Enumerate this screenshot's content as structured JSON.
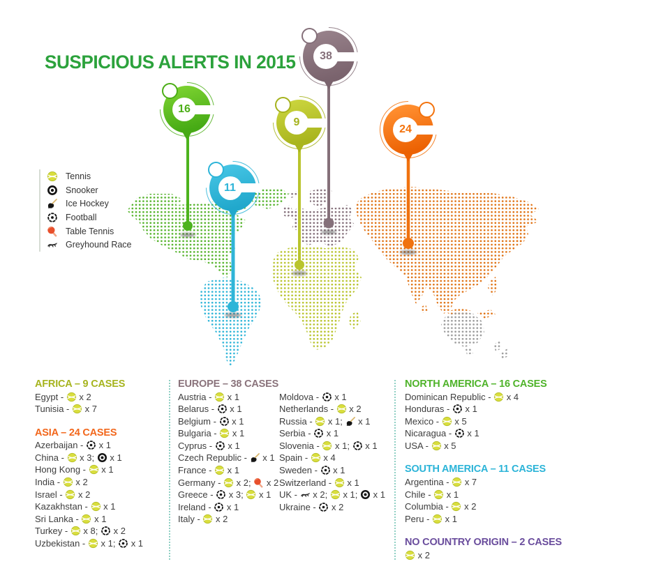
{
  "title": "SUSPICIOUS ALERTS IN 2015",
  "legend": {
    "items": [
      {
        "sport": "tennis",
        "label": "Tennis"
      },
      {
        "sport": "snooker",
        "label": "Snooker"
      },
      {
        "sport": "icehockey",
        "label": "Ice Hockey"
      },
      {
        "sport": "football",
        "label": "Football"
      },
      {
        "sport": "tabletennis",
        "label": "Table Tennis"
      },
      {
        "sport": "greyhound",
        "label": "Greyhound Race"
      }
    ]
  },
  "markers": {
    "north_america": "16",
    "europe": "38",
    "africa": "9",
    "asia": "24",
    "south_america": "11"
  },
  "colors": {
    "title_green": "#2ca23c",
    "map_north_america": "#55b32b",
    "map_south_america": "#2fb5d8",
    "map_europe": "#84707a",
    "map_africa": "#b9c42d",
    "map_asia": "#e07315",
    "map_australia": "#9b9b9b",
    "marker_green": "#46aa15",
    "marker_mauve": "#85707a",
    "marker_olive": "#a9b51e",
    "marker_orange": "#ec6203",
    "marker_cyan": "#2cb4d8"
  },
  "chart_data": {
    "type": "table",
    "title": "SUSPICIOUS ALERTS IN 2015",
    "regions": [
      {
        "id": "africa",
        "heading": "AFRICA – 9 CASES",
        "color": "#a6b41e",
        "cases": 9,
        "rows": [
          {
            "country": "Egypt",
            "items": [
              [
                "tennis",
                2
              ]
            ]
          },
          {
            "country": "Tunisia",
            "items": [
              [
                "tennis",
                7
              ]
            ]
          }
        ]
      },
      {
        "id": "asia",
        "heading": "ASIA – 24 CASES",
        "color": "#f2671c",
        "cases": 24,
        "rows": [
          {
            "country": "Azerbaijan",
            "items": [
              [
                "football",
                1
              ]
            ]
          },
          {
            "country": "China",
            "items": [
              [
                "tennis",
                3
              ],
              [
                "snooker",
                1
              ]
            ]
          },
          {
            "country": "Hong Kong",
            "items": [
              [
                "tennis",
                1
              ]
            ]
          },
          {
            "country": "India",
            "items": [
              [
                "tennis",
                2
              ]
            ]
          },
          {
            "country": "Israel",
            "items": [
              [
                "tennis",
                2
              ]
            ]
          },
          {
            "country": "Kazakhstan",
            "items": [
              [
                "tennis",
                1
              ]
            ]
          },
          {
            "country": "Sri Lanka",
            "items": [
              [
                "tennis",
                1
              ]
            ]
          },
          {
            "country": "Turkey",
            "items": [
              [
                "tennis",
                8
              ],
              [
                "football",
                2
              ]
            ]
          },
          {
            "country": "Uzbekistan",
            "items": [
              [
                "tennis",
                1
              ],
              [
                "football",
                1
              ]
            ]
          }
        ]
      },
      {
        "id": "europe",
        "heading": "EUROPE – 38 CASES",
        "color": "#8a737b",
        "cases": 38,
        "rows": [
          {
            "country": "Austria",
            "items": [
              [
                "tennis",
                1
              ]
            ]
          },
          {
            "country": "Belarus",
            "items": [
              [
                "football",
                1
              ]
            ]
          },
          {
            "country": "Belgium",
            "items": [
              [
                "football",
                1
              ]
            ]
          },
          {
            "country": "Bulgaria",
            "items": [
              [
                "tennis",
                1
              ]
            ]
          },
          {
            "country": "Cyprus",
            "items": [
              [
                "football",
                1
              ]
            ]
          },
          {
            "country": "Czech Republic",
            "items": [
              [
                "icehockey",
                1
              ]
            ]
          },
          {
            "country": "France",
            "items": [
              [
                "tennis",
                1
              ]
            ]
          },
          {
            "country": "Germany",
            "items": [
              [
                "tennis",
                2
              ],
              [
                "tabletennis",
                2
              ]
            ]
          },
          {
            "country": "Greece",
            "items": [
              [
                "football",
                3
              ],
              [
                "tennis",
                1
              ]
            ]
          },
          {
            "country": "Ireland",
            "items": [
              [
                "football",
                1
              ]
            ]
          },
          {
            "country": "Italy",
            "items": [
              [
                "tennis",
                2
              ]
            ]
          },
          {
            "country": "Moldova",
            "items": [
              [
                "football",
                1
              ]
            ]
          },
          {
            "country": "Netherlands",
            "items": [
              [
                "tennis",
                2
              ]
            ]
          },
          {
            "country": "Russia",
            "items": [
              [
                "tennis",
                1
              ],
              [
                "icehockey",
                1
              ]
            ]
          },
          {
            "country": "Serbia",
            "items": [
              [
                "football",
                1
              ]
            ]
          },
          {
            "country": "Slovenia",
            "items": [
              [
                "tennis",
                1
              ],
              [
                "football",
                1
              ]
            ]
          },
          {
            "country": "Spain",
            "items": [
              [
                "tennis",
                4
              ]
            ]
          },
          {
            "country": "Sweden",
            "items": [
              [
                "football",
                1
              ]
            ]
          },
          {
            "country": "Switzerland",
            "items": [
              [
                "tennis",
                1
              ]
            ]
          },
          {
            "country": "UK",
            "items": [
              [
                "greyhound",
                2
              ],
              [
                "tennis",
                1
              ],
              [
                "snooker",
                1
              ]
            ]
          },
          {
            "country": "Ukraine",
            "items": [
              [
                "football",
                2
              ]
            ]
          }
        ]
      },
      {
        "id": "north_america",
        "heading": "NORTH AMERICA – 16 CASES",
        "color": "#4fb32a",
        "cases": 16,
        "rows": [
          {
            "country": "Dominican Republic",
            "items": [
              [
                "tennis",
                4
              ]
            ]
          },
          {
            "country": "Honduras",
            "items": [
              [
                "football",
                1
              ]
            ]
          },
          {
            "country": "Mexico",
            "items": [
              [
                "tennis",
                5
              ]
            ]
          },
          {
            "country": "Nicaragua",
            "items": [
              [
                "football",
                1
              ]
            ]
          },
          {
            "country": "USA",
            "items": [
              [
                "tennis",
                5
              ]
            ]
          }
        ]
      },
      {
        "id": "south_america",
        "heading": "SOUTH AMERICA – 11 CASES",
        "color": "#2cb4d8",
        "cases": 11,
        "rows": [
          {
            "country": "Argentina",
            "items": [
              [
                "tennis",
                7
              ]
            ]
          },
          {
            "country": "Chile",
            "items": [
              [
                "tennis",
                1
              ]
            ]
          },
          {
            "country": "Columbia",
            "items": [
              [
                "tennis",
                2
              ]
            ]
          },
          {
            "country": "Peru",
            "items": [
              [
                "tennis",
                1
              ]
            ]
          }
        ]
      },
      {
        "id": "no_country",
        "heading": "NO COUNTRY ORIGIN – 2 CASES",
        "color": "#6a4d9d",
        "cases": 2,
        "rows": [
          {
            "country": "",
            "items": [
              [
                "tennis",
                2
              ]
            ]
          }
        ]
      }
    ]
  }
}
